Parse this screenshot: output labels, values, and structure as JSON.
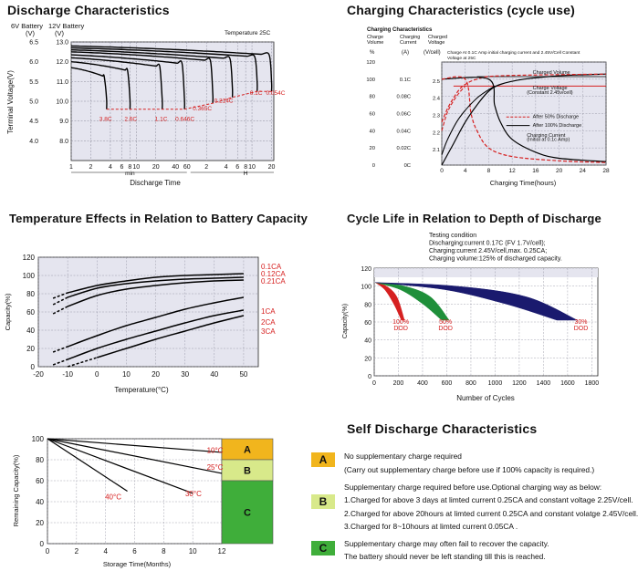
{
  "colors": {
    "grid_bg": "#e5e5ef",
    "red": "#d62020",
    "green": "#1f8f3a",
    "navy": "#1a1a6e",
    "zone_a": "#f1b51d",
    "zone_b": "#d8e98a",
    "zone_c": "#3fae3a"
  },
  "titles": {
    "discharge": "Discharge Characteristics",
    "charging": "Charging Characteristics (cycle use)",
    "temperature": "Temperature Effects in Relation to Battery Capacity",
    "cycle": "Cycle Life in Relation to Depth of Discharge",
    "self": "Self Discharge Characteristics"
  },
  "chart_data": [
    {
      "id": "discharge",
      "type": "line",
      "title": "Discharge Characteristics",
      "header6v": "6V Battery",
      "header12v": "12V Battery",
      "unit6v": "(V)",
      "unit12v": "(V)",
      "temp_note": "Temperature 25C",
      "ylabel": "Terminal Voltage(V)",
      "xlabel": "Discharge Time",
      "y6_ticks": [
        "6.5",
        "6.0",
        "5.5",
        "5.0",
        "4.5",
        "4.0"
      ],
      "y12_ticks": [
        "13.0",
        "12.0",
        "11.0",
        "10.0",
        "9.0",
        "8.0"
      ],
      "ylim_12v": [
        7,
        13
      ],
      "x_ticks": [
        "1",
        "2",
        "4",
        "6",
        "8",
        "10",
        "20",
        "40",
        "60",
        "2",
        "4",
        "6",
        "8",
        "10",
        "20"
      ],
      "x_unit_min": "min",
      "x_unit_h": "H",
      "series": [
        {
          "name": "3.8C",
          "label": "3.8C",
          "end_minutes": 3.5,
          "cutoff_12v": 9.6
        },
        {
          "name": "2.6C",
          "label": "2.6C",
          "end_minutes": 8,
          "cutoff_12v": 9.6
        },
        {
          "name": "1.1C",
          "label": "1.1C",
          "end_minutes": 25,
          "cutoff_12v": 9.6
        },
        {
          "name": "0.646C",
          "label": "0.646C",
          "end_minutes": 55,
          "cutoff_12v": 9.6
        },
        {
          "name": "0.365C",
          "label": "0.365C",
          "end_minutes": 150,
          "cutoff_12v": 9.9
        },
        {
          "name": "0.214C",
          "label": "0.214C",
          "end_minutes": 300,
          "cutoff_12v": 10.2
        },
        {
          "name": "0.1C",
          "label": "0.1C",
          "end_minutes": 720,
          "cutoff_12v": 10.5
        },
        {
          "name": "0.054C",
          "label": "0.054C",
          "end_minutes": 1200,
          "cutoff_12v": 10.5
        }
      ]
    },
    {
      "id": "charging",
      "type": "line",
      "title": "Charging Characteristics (cycle use)",
      "inner_title": "Charging Characteristics",
      "col_volume": "Charge Volume",
      "col_current": "Charging Current",
      "col_voltage": "Charged Voltage",
      "unit_volume": "%",
      "unit_current": "(A)",
      "unit_voltage": "(V/cell)",
      "note": "Charge At 0.1C Amp initial charging current and 2.45V/Cell Constant Voltage at 25C",
      "volume_ticks": [
        "120",
        "100",
        "80",
        "60",
        "40",
        "20",
        "0"
      ],
      "current_ticks": [
        "0.1C",
        "0.08C",
        "0.06C",
        "0.04C",
        "0.02C",
        "0C"
      ],
      "voltage_ticks": [
        "2.5",
        "2.4",
        "2.3",
        "2.2",
        "2.1"
      ],
      "x_ticks": [
        "0",
        "4",
        "8",
        "12",
        "16",
        "20",
        "24",
        "28"
      ],
      "xlim": [
        0,
        28
      ],
      "xlabel": "Charging Time(hours)",
      "annotations": {
        "charged_volume": "Charged Volume",
        "charge_voltage": "Charge Voltage",
        "charge_voltage_sub": "(Constant 2.45v/cell)",
        "after50": "After 50% Discharge",
        "after100": "After 100% Discharge",
        "charging_current": "Charging Current",
        "charging_current_sub": "(Initial at 0.1c Amp)"
      },
      "series": [
        {
          "name": "Charged Volume (100%)",
          "x": [
            0,
            2,
            4,
            6,
            8,
            10,
            14,
            20,
            28
          ],
          "y_percent": [
            0,
            25,
            50,
            70,
            86,
            94,
            100,
            104,
            106
          ]
        },
        {
          "name": "Charged Volume (50%)",
          "x": [
            0,
            1,
            2,
            3,
            4,
            6,
            10,
            28
          ],
          "y_percent": [
            50,
            66,
            78,
            88,
            94,
            100,
            104,
            106
          ]
        },
        {
          "name": "Charging Current (100%)",
          "x": [
            0,
            8,
            9,
            10,
            12,
            16,
            20,
            28
          ],
          "y_current_c": [
            0.1,
            0.1,
            0.07,
            0.05,
            0.03,
            0.015,
            0.008,
            0.004
          ]
        },
        {
          "name": "Charging Current (50%)",
          "x": [
            0,
            4,
            5,
            6,
            8,
            12,
            20,
            28
          ],
          "y_current_c": [
            0.1,
            0.1,
            0.06,
            0.04,
            0.02,
            0.01,
            0.005,
            0.003
          ]
        }
      ]
    },
    {
      "id": "temperature",
      "type": "line",
      "title": "Temperature Effects in Relation to Battery Capacity",
      "xlabel": "Temperature(°C)",
      "ylabel": "Capacity(%)",
      "x_ticks": [
        "-20",
        "-10",
        "0",
        "10",
        "20",
        "30",
        "40",
        "50"
      ],
      "y_ticks": [
        "0",
        "20",
        "40",
        "60",
        "80",
        "100",
        "120"
      ],
      "xlim": [
        -20,
        55
      ],
      "ylim": [
        0,
        120
      ],
      "series": [
        {
          "name": "0.1CA",
          "x": [
            -15,
            -10,
            0,
            10,
            20,
            30,
            40,
            50
          ],
          "y": [
            75,
            81,
            89,
            94,
            98,
            100,
            101,
            102
          ]
        },
        {
          "name": "0.12CA",
          "x": [
            -15,
            -10,
            0,
            10,
            20,
            30,
            40,
            50
          ],
          "y": [
            68,
            76,
            86,
            91,
            94,
            96,
            97,
            98
          ]
        },
        {
          "name": "0.21CA",
          "x": [
            -15,
            -10,
            0,
            10,
            20,
            30,
            40,
            50
          ],
          "y": [
            58,
            66,
            78,
            85,
            89,
            92,
            94,
            95
          ]
        },
        {
          "name": "1CA",
          "x": [
            -15,
            -10,
            0,
            10,
            20,
            30,
            40,
            50
          ],
          "y": [
            16,
            22,
            34,
            45,
            54,
            63,
            70,
            76
          ]
        },
        {
          "name": "2CA",
          "x": [
            -15,
            -10,
            0,
            10,
            20,
            30,
            40,
            50
          ],
          "y": [
            2,
            8,
            20,
            30,
            39,
            48,
            56,
            62
          ]
        },
        {
          "name": "3CA",
          "x": [
            -10,
            0,
            10,
            20,
            30,
            40,
            50
          ],
          "y": [
            0,
            10,
            20,
            30,
            39,
            48,
            56
          ]
        }
      ]
    },
    {
      "id": "cycle",
      "type": "area",
      "title": "Cycle Life in Relation to Depth of Discharge",
      "test_condition": [
        "Testing condition",
        "Discharging:current 0.17C (FV 1.7V/cell);",
        "Charging:current 2.45V/cell,max. 0.25CA;",
        "Charging volume:125% of discharged capacity."
      ],
      "xlabel": "Number of Cycles",
      "ylabel": "Capacity(%)",
      "x_ticks": [
        "0",
        "200",
        "400",
        "600",
        "800",
        "1000",
        "1200",
        "1400",
        "1600",
        "1800"
      ],
      "y_ticks": [
        "0",
        "20",
        "40",
        "60",
        "80",
        "100",
        "120"
      ],
      "xlim": [
        0,
        1850
      ],
      "ylim": [
        0,
        120
      ],
      "series": [
        {
          "name": "100% DOD",
          "label_top": "100%",
          "label_bottom": "DOD",
          "end_cycles": 250
        },
        {
          "name": "50% DOD",
          "label_top": "50%",
          "label_bottom": "DOD",
          "end_cycles": 620
        },
        {
          "name": "30% DOD",
          "label_top": "30%",
          "label_bottom": "DOD",
          "end_cycles": 1680
        }
      ]
    },
    {
      "id": "self",
      "type": "line",
      "title": "Self Discharge Characteristics",
      "xlabel": "Storage Time(Months)",
      "ylabel": "Remaining Capacity(%)",
      "x_ticks": [
        "0",
        "2",
        "4",
        "6",
        "8",
        "10",
        "12"
      ],
      "y_ticks": [
        "0",
        "20",
        "40",
        "60",
        "80",
        "100"
      ],
      "xlim": [
        0,
        12
      ],
      "ylim": [
        0,
        100
      ],
      "zones": [
        {
          "label": "A",
          "from": 80,
          "to": 100
        },
        {
          "label": "B",
          "from": 60,
          "to": 80
        },
        {
          "label": "C",
          "from": 0,
          "to": 60
        }
      ],
      "series": [
        {
          "name": "10°C",
          "label": "10°C",
          "x": [
            0,
            12
          ],
          "y": [
            100,
            87
          ]
        },
        {
          "name": "25°C",
          "label": "25°C",
          "x": [
            0,
            12
          ],
          "y": [
            100,
            67
          ]
        },
        {
          "name": "30°C",
          "label": "30°C",
          "x": [
            0,
            10
          ],
          "y": [
            100,
            48
          ]
        },
        {
          "name": "40°C",
          "label": "40°C",
          "x": [
            0,
            5.5
          ],
          "y": [
            100,
            50
          ]
        }
      ]
    }
  ],
  "self_legend": {
    "a": {
      "badge": "A",
      "lines": [
        "No supplementary charge required",
        "(Carry out supplementary charge before use if 100% capacity is required.)"
      ]
    },
    "b": {
      "badge": "B",
      "lines": [
        "Supplementary charge required before use.Optional charging way as below:",
        "1.Charged for above 3 days at limted current 0.25CA and constant voltage 2.25V/cell.",
        "2.Charged for above 20hours at limted current 0.25CA and constant volatge 2.45V/cell.",
        "3.Charged for 8~10hours at limted current 0.05CA ."
      ]
    },
    "c": {
      "badge": "C",
      "lines": [
        "Supplementary charge may often fail to recover the capacity.",
        "The battery should never be  left standing till this is reached."
      ]
    }
  }
}
